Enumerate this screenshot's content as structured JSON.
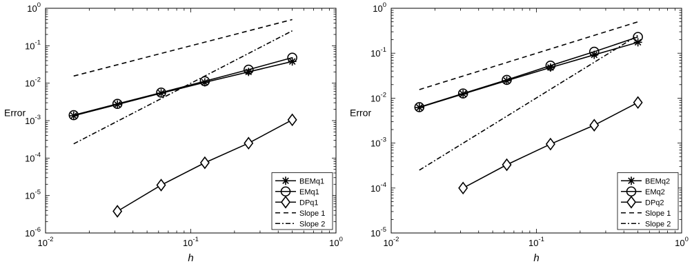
{
  "chart_data": [
    {
      "type": "line",
      "xscale": "log",
      "yscale": "log",
      "xlim": [
        0.01,
        1
      ],
      "ylim": [
        1e-06,
        1
      ],
      "xlabel": "h",
      "ylabel": "Error",
      "x_ticks": [
        {
          "base": "10",
          "exp": "-2"
        },
        {
          "base": "10",
          "exp": "-1"
        },
        {
          "base": "10",
          "exp": "0"
        }
      ],
      "y_ticks": [
        {
          "base": "10",
          "exp": "-6"
        },
        {
          "base": "10",
          "exp": "-5"
        },
        {
          "base": "10",
          "exp": "-4"
        },
        {
          "base": "10",
          "exp": "-3"
        },
        {
          "base": "10",
          "exp": "-2"
        },
        {
          "base": "10",
          "exp": "-1"
        },
        {
          "base": "10",
          "exp": "0"
        }
      ],
      "legend_position": "bottom-right",
      "series": [
        {
          "name": "BEMq1",
          "marker": "star",
          "dash": "solid",
          "x": [
            0.015625,
            0.03125,
            0.0625,
            0.125,
            0.25,
            0.5
          ],
          "y": [
            0.00135,
            0.0027,
            0.0054,
            0.0105,
            0.02,
            0.038
          ]
        },
        {
          "name": "EMq1",
          "marker": "circle",
          "dash": "solid",
          "x": [
            0.015625,
            0.03125,
            0.0625,
            0.125,
            0.25,
            0.5
          ],
          "y": [
            0.0014,
            0.0028,
            0.0056,
            0.0113,
            0.023,
            0.048
          ]
        },
        {
          "name": "DPq1",
          "marker": "diamond",
          "dash": "solid",
          "x": [
            0.03125,
            0.0625,
            0.125,
            0.25,
            0.5
          ],
          "y": [
            3.8e-06,
            1.9e-05,
            7.5e-05,
            0.00025,
            0.00105
          ]
        },
        {
          "name": "Slope 1",
          "marker": "none",
          "dash": "dashed",
          "x": [
            0.015625,
            0.5
          ],
          "y": [
            0.0155,
            0.5
          ]
        },
        {
          "name": "Slope 2",
          "marker": "none",
          "dash": "dashdot",
          "x": [
            0.015625,
            0.5
          ],
          "y": [
            0.00024,
            0.25
          ]
        }
      ]
    },
    {
      "type": "line",
      "xscale": "log",
      "yscale": "log",
      "xlim": [
        0.01,
        1
      ],
      "ylim": [
        1e-05,
        1
      ],
      "xlabel": "h",
      "ylabel": "Error",
      "x_ticks": [
        {
          "base": "10",
          "exp": "-2"
        },
        {
          "base": "10",
          "exp": "-1"
        },
        {
          "base": "10",
          "exp": "0"
        }
      ],
      "y_ticks": [
        {
          "base": "10",
          "exp": "-5"
        },
        {
          "base": "10",
          "exp": "-4"
        },
        {
          "base": "10",
          "exp": "-3"
        },
        {
          "base": "10",
          "exp": "-2"
        },
        {
          "base": "10",
          "exp": "-1"
        },
        {
          "base": "10",
          "exp": "0"
        }
      ],
      "legend_position": "bottom-right",
      "series": [
        {
          "name": "BEMq2",
          "marker": "star",
          "dash": "solid",
          "x": [
            0.015625,
            0.03125,
            0.0625,
            0.125,
            0.25,
            0.5
          ],
          "y": [
            0.0062,
            0.0124,
            0.0245,
            0.048,
            0.092,
            0.175
          ]
        },
        {
          "name": "EMq2",
          "marker": "circle",
          "dash": "solid",
          "x": [
            0.015625,
            0.03125,
            0.0625,
            0.125,
            0.25,
            0.5
          ],
          "y": [
            0.0063,
            0.0127,
            0.0255,
            0.053,
            0.108,
            0.23
          ]
        },
        {
          "name": "DPq2",
          "marker": "diamond",
          "dash": "solid",
          "x": [
            0.03125,
            0.0625,
            0.125,
            0.25,
            0.5
          ],
          "y": [
            0.0001,
            0.00033,
            0.00095,
            0.0025,
            0.008
          ]
        },
        {
          "name": "Slope 1",
          "marker": "none",
          "dash": "dashed",
          "x": [
            0.015625,
            0.5
          ],
          "y": [
            0.0155,
            0.5
          ]
        },
        {
          "name": "Slope 2",
          "marker": "none",
          "dash": "dashdot",
          "x": [
            0.015625,
            0.5
          ],
          "y": [
            0.00025,
            0.25
          ]
        }
      ]
    }
  ]
}
